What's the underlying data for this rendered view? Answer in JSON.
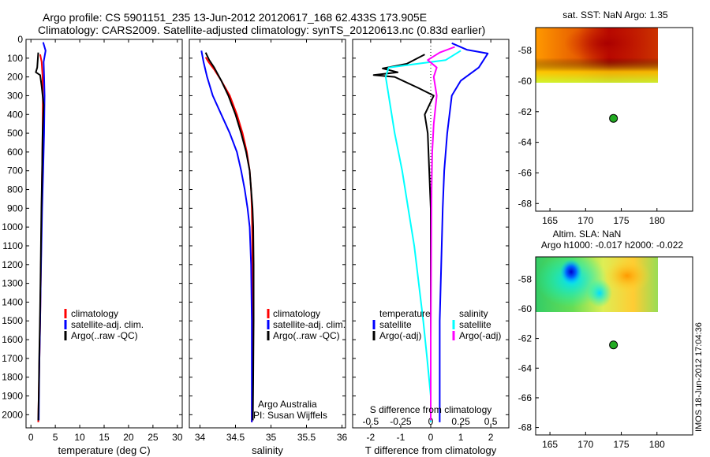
{
  "header": {
    "line1": "Argo profile: CS 5901151_235 13-Jun-2012 20120617_168 62.433S 173.905E",
    "line2": "Climatology: CARS2009. Satellite-adjusted climatology: synTS_20120613.nc (0.83d earlier)"
  },
  "side_stamp": "IMOS 18-Jun-2012 17:04:36",
  "colors": {
    "climatology": "#ff0000",
    "satellite": "#0000ff",
    "argo": "#000000",
    "sal_satellite": "#00ffff",
    "sal_argo": "#ff00ff",
    "float_marker": "#22aa22"
  },
  "chart_data": [
    {
      "type": "line",
      "id": "temperature",
      "xlabel": "temperature (deg C)",
      "ylabel": "",
      "xlim": [
        -1,
        31
      ],
      "ylim": [
        2070,
        0
      ],
      "xticks": [
        "0",
        "5",
        "10",
        "15",
        "20",
        "25",
        "30"
      ],
      "xtick_values": [
        0,
        5,
        10,
        15,
        20,
        25,
        30
      ],
      "yticks": [
        "0",
        "100",
        "200",
        "300",
        "400",
        "500",
        "600",
        "700",
        "800",
        "900",
        "1000",
        "1100",
        "1200",
        "1300",
        "1400",
        "1500",
        "1600",
        "1700",
        "1800",
        "1900",
        "2000"
      ],
      "ytick_values": [
        0,
        100,
        200,
        300,
        400,
        500,
        600,
        700,
        800,
        900,
        1000,
        1100,
        1200,
        1300,
        1400,
        1500,
        1600,
        1700,
        1800,
        1900,
        2000
      ],
      "legend": [
        "climatology",
        "satellite-adj. clim.",
        "Argo(..raw -QC)"
      ],
      "series": [
        {
          "name": "climatology",
          "color_key": "climatology",
          "points": [
            [
              1.9,
              80
            ],
            [
              2.2,
              120
            ],
            [
              2.4,
              200
            ],
            [
              2.45,
              300
            ],
            [
              2.4,
              500
            ],
            [
              2.3,
              700
            ],
            [
              2.2,
              900
            ],
            [
              2.1,
              1100
            ],
            [
              2.0,
              1300
            ],
            [
              1.9,
              1500
            ],
            [
              1.75,
              1700
            ],
            [
              1.6,
              1900
            ],
            [
              1.5,
              2040
            ]
          ]
        },
        {
          "name": "satellite-adj. clim.",
          "color_key": "satellite",
          "points": [
            [
              2.5,
              15
            ],
            [
              3.0,
              60
            ],
            [
              2.6,
              120
            ],
            [
              2.7,
              200
            ],
            [
              2.8,
              300
            ],
            [
              2.7,
              500
            ],
            [
              2.5,
              700
            ],
            [
              2.3,
              900
            ],
            [
              2.15,
              1100
            ],
            [
              2.0,
              1300
            ],
            [
              1.9,
              1500
            ],
            [
              1.75,
              1700
            ],
            [
              1.65,
              1900
            ],
            [
              1.6,
              2030
            ]
          ]
        },
        {
          "name": "Argo(..raw -QC)",
          "color_key": "argo",
          "points": [
            [
              1.5,
              70
            ],
            [
              1.3,
              150
            ],
            [
              1.0,
              175
            ],
            [
              1.9,
              190
            ],
            [
              2.2,
              250
            ],
            [
              2.6,
              350
            ],
            [
              2.4,
              500
            ],
            [
              2.3,
              700
            ],
            [
              2.15,
              900
            ],
            [
              2.05,
              1100
            ],
            [
              1.95,
              1300
            ],
            [
              1.85,
              1500
            ],
            [
              1.7,
              1700
            ],
            [
              1.6,
              1900
            ],
            [
              1.5,
              2030
            ]
          ]
        }
      ]
    },
    {
      "type": "line",
      "id": "salinity",
      "xlabel": "salinity",
      "xlim": [
        33.85,
        36.05
      ],
      "ylim": [
        2070,
        0
      ],
      "xticks": [
        "34",
        "34.5",
        "35",
        "35.5",
        "36"
      ],
      "xtick_values": [
        34,
        34.5,
        35,
        35.5,
        36
      ],
      "legend": [
        "climatology",
        "satellite-adj. clim.",
        "Argo(..raw -QC)"
      ],
      "annotations": [
        "Argo Australia",
        "PI: Susan Wijffels"
      ],
      "series": [
        {
          "name": "climatology",
          "color_key": "climatology",
          "points": [
            [
              34.08,
              95
            ],
            [
              34.12,
              120
            ],
            [
              34.2,
              160
            ],
            [
              34.3,
              220
            ],
            [
              34.42,
              300
            ],
            [
              34.52,
              400
            ],
            [
              34.6,
              500
            ],
            [
              34.66,
              600
            ],
            [
              34.7,
              700
            ],
            [
              34.72,
              800
            ],
            [
              34.73,
              900
            ],
            [
              34.735,
              1000
            ],
            [
              34.74,
              1200
            ],
            [
              34.74,
              1500
            ],
            [
              34.735,
              1800
            ],
            [
              34.73,
              2040
            ]
          ]
        },
        {
          "name": "satellite-adj. clim.",
          "color_key": "satellite",
          "points": [
            [
              34.02,
              60
            ],
            [
              34.05,
              120
            ],
            [
              34.1,
              200
            ],
            [
              34.18,
              300
            ],
            [
              34.3,
              400
            ],
            [
              34.42,
              500
            ],
            [
              34.52,
              600
            ],
            [
              34.58,
              700
            ],
            [
              34.63,
              800
            ],
            [
              34.67,
              900
            ],
            [
              34.7,
              1000
            ],
            [
              34.72,
              1200
            ],
            [
              34.73,
              1500
            ],
            [
              34.73,
              1800
            ],
            [
              34.73,
              2040
            ]
          ]
        },
        {
          "name": "Argo(..raw -QC)",
          "color_key": "argo",
          "points": [
            [
              34.08,
              70
            ],
            [
              34.13,
              110
            ],
            [
              34.2,
              150
            ],
            [
              34.3,
              220
            ],
            [
              34.4,
              300
            ],
            [
              34.5,
              400
            ],
            [
              34.58,
              500
            ],
            [
              34.65,
              600
            ],
            [
              34.7,
              700
            ],
            [
              34.72,
              800
            ],
            [
              34.74,
              900
            ],
            [
              34.75,
              1000
            ],
            [
              34.755,
              1200
            ],
            [
              34.755,
              1500
            ],
            [
              34.75,
              1800
            ],
            [
              34.745,
              2030
            ]
          ]
        }
      ]
    },
    {
      "type": "line",
      "id": "difference",
      "xlabel": "T difference from climatology",
      "xlabel2": "S difference from climatology",
      "xlim": [
        -2.6,
        2.6
      ],
      "ylim": [
        2070,
        0
      ],
      "xticks": [
        "-2",
        "-1",
        "0",
        "1",
        "2"
      ],
      "xtick_values": [
        -2,
        -1,
        0,
        1,
        2
      ],
      "xticks2": [
        "-0.5",
        "-0.25",
        "0",
        "0.25",
        "0.5"
      ],
      "legend_title_left": "temperature",
      "legend_title_right": "salinity",
      "legend": [
        "satellite",
        "Argo(-adj)",
        "satellite",
        "Argo(-adj)"
      ],
      "series": [
        {
          "name": "temperature satellite",
          "color_key": "satellite",
          "points": [
            [
              0.7,
              20
            ],
            [
              1.2,
              55
            ],
            [
              1.9,
              75
            ],
            [
              1.6,
              150
            ],
            [
              1.0,
              220
            ],
            [
              0.7,
              300
            ],
            [
              0.55,
              500
            ],
            [
              0.45,
              700
            ],
            [
              0.4,
              900
            ],
            [
              0.35,
              1200
            ],
            [
              0.3,
              1500
            ],
            [
              0.3,
              1800
            ],
            [
              0.3,
              2040
            ]
          ]
        },
        {
          "name": "temperature Argo(-adj)",
          "color_key": "argo",
          "points": [
            [
              -0.2,
              80
            ],
            [
              -0.8,
              130
            ],
            [
              -1.6,
              155
            ],
            [
              -1.1,
              175
            ],
            [
              -1.9,
              190
            ],
            [
              -1.2,
              200
            ],
            [
              -0.4,
              260
            ],
            [
              0.1,
              300
            ],
            [
              -0.2,
              400
            ],
            [
              -0.1,
              500
            ],
            [
              -0.05,
              700
            ],
            [
              0.0,
              900
            ],
            [
              0.0,
              1200
            ],
            [
              0.0,
              1500
            ],
            [
              0.0,
              1800
            ],
            [
              0.0,
              2030
            ]
          ]
        },
        {
          "name": "salinity satellite",
          "color_key": "sal_satellite",
          "points": [
            [
              1.0,
              60
            ],
            [
              0.5,
              110
            ],
            [
              -1.4,
              150
            ],
            [
              -1.5,
              200
            ],
            [
              -1.4,
              300
            ],
            [
              -1.2,
              500
            ],
            [
              -0.95,
              700
            ],
            [
              -0.75,
              900
            ],
            [
              -0.55,
              1100
            ],
            [
              -0.4,
              1300
            ],
            [
              -0.25,
              1500
            ],
            [
              -0.12,
              1700
            ],
            [
              0.0,
              1900
            ],
            [
              0.0,
              2040
            ]
          ]
        },
        {
          "name": "salinity Argo(-adj)",
          "color_key": "sal_argo",
          "points": [
            [
              0.8,
              40
            ],
            [
              0.3,
              70
            ],
            [
              -0.1,
              110
            ],
            [
              0.2,
              150
            ],
            [
              0.1,
              200
            ],
            [
              0.2,
              300
            ],
            [
              0.1,
              450
            ],
            [
              0.05,
              600
            ],
            [
              0.03,
              800
            ],
            [
              0.02,
              1000
            ],
            [
              0.01,
              1300
            ],
            [
              0.0,
              1600
            ],
            [
              0.0,
              1900
            ],
            [
              0.0,
              2030
            ]
          ]
        }
      ]
    },
    {
      "type": "heatmap",
      "id": "sst_map",
      "title": "sat. SST: NaN Argo: 1.35",
      "xlim": [
        163,
        185
      ],
      "ylim": [
        -68.5,
        -56.5
      ],
      "xticks": [
        "165",
        "170",
        "175",
        "180"
      ],
      "xtick_values": [
        165,
        170,
        175,
        180
      ],
      "yticks": [
        "-58",
        "-60",
        "-62",
        "-64",
        "-66",
        "-68"
      ],
      "ytick_values": [
        -58,
        -60,
        -62,
        -64,
        -66,
        -68
      ],
      "data_extent": {
        "lon": [
          163,
          180.2
        ],
        "lat": [
          -60.3,
          -56.5
        ]
      },
      "float_position": {
        "lon": 173.905,
        "lat": -62.433
      }
    },
    {
      "type": "heatmap",
      "id": "sla_map",
      "title": "Altim. SLA: NaN",
      "subtitle": "Argo h1000: -0.017 h2000: -0.022",
      "xlim": [
        163,
        185
      ],
      "ylim": [
        -68.5,
        -56.5
      ],
      "xticks": [
        "165",
        "170",
        "175",
        "180"
      ],
      "xtick_values": [
        165,
        170,
        175,
        180
      ],
      "yticks": [
        "-58",
        "-60",
        "-62",
        "-64",
        "-66",
        "-68"
      ],
      "ytick_values": [
        -58,
        -60,
        -62,
        -64,
        -66,
        -68
      ],
      "data_extent": {
        "lon": [
          163,
          180.2
        ],
        "lat": [
          -60.3,
          -56.5
        ]
      },
      "float_position": {
        "lon": 173.905,
        "lat": -62.433
      }
    }
  ]
}
